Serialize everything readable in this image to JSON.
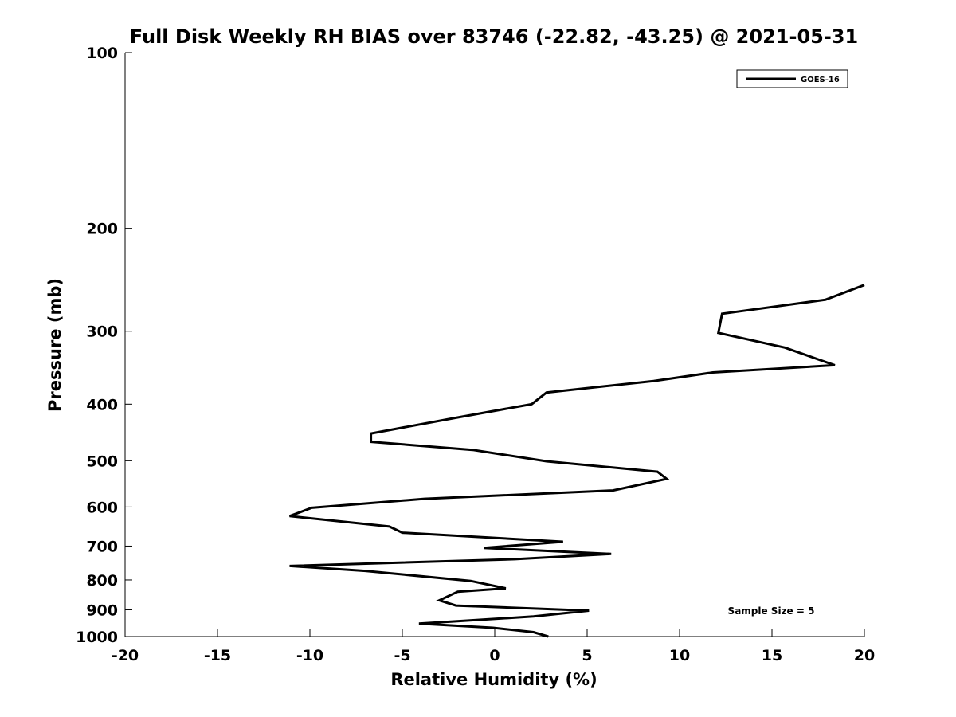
{
  "chart_data": {
    "type": "line",
    "title": "Full Disk Weekly RH BIAS over 83746 (-22.82, -43.25) @ 2021-05-31",
    "xlabel": "Relative Humidity (%)",
    "ylabel": "Pressure (mb)",
    "xlim": [
      -20,
      20
    ],
    "ylim": [
      100,
      1000
    ],
    "y_scale": "log",
    "y_reversed": true,
    "x_ticks": [
      -20,
      -15,
      -10,
      -5,
      0,
      5,
      10,
      15,
      20
    ],
    "x_tick_labels": [
      "-20",
      "-15",
      "-10",
      "-5",
      "0",
      "5",
      "10",
      "15",
      "20"
    ],
    "y_ticks": [
      100,
      200,
      300,
      400,
      500,
      600,
      700,
      800,
      900,
      1000
    ],
    "y_tick_labels": [
      "100",
      "200",
      "300",
      "400",
      "500",
      "600",
      "700",
      "800",
      "900",
      "1000"
    ],
    "grid": false,
    "legend_position": "top-right",
    "series": [
      {
        "name": "GOES-16",
        "color": "#000000",
        "points": [
          {
            "x": 20.0,
            "y": 250
          },
          {
            "x": 17.9,
            "y": 265
          },
          {
            "x": 12.3,
            "y": 280
          },
          {
            "x": 12.1,
            "y": 302
          },
          {
            "x": 15.7,
            "y": 320
          },
          {
            "x": 18.4,
            "y": 343
          },
          {
            "x": 11.8,
            "y": 353
          },
          {
            "x": 8.6,
            "y": 365
          },
          {
            "x": 2.8,
            "y": 382
          },
          {
            "x": 2.0,
            "y": 400
          },
          {
            "x": -2.1,
            "y": 422
          },
          {
            "x": -6.7,
            "y": 449
          },
          {
            "x": -6.7,
            "y": 464
          },
          {
            "x": -1.2,
            "y": 479
          },
          {
            "x": 2.8,
            "y": 501
          },
          {
            "x": 8.8,
            "y": 522
          },
          {
            "x": 9.3,
            "y": 537
          },
          {
            "x": 6.4,
            "y": 562
          },
          {
            "x": -3.8,
            "y": 581
          },
          {
            "x": -9.9,
            "y": 602
          },
          {
            "x": -11.1,
            "y": 622
          },
          {
            "x": -5.7,
            "y": 648
          },
          {
            "x": -5.0,
            "y": 664
          },
          {
            "x": 3.7,
            "y": 688
          },
          {
            "x": -0.6,
            "y": 705
          },
          {
            "x": 6.3,
            "y": 722
          },
          {
            "x": 1.1,
            "y": 737
          },
          {
            "x": -11.1,
            "y": 757
          },
          {
            "x": -7.0,
            "y": 772
          },
          {
            "x": -1.3,
            "y": 803
          },
          {
            "x": 0.6,
            "y": 827
          },
          {
            "x": -2.0,
            "y": 838
          },
          {
            "x": -3.0,
            "y": 867
          },
          {
            "x": -2.1,
            "y": 885
          },
          {
            "x": 5.1,
            "y": 903
          },
          {
            "x": 2.1,
            "y": 924
          },
          {
            "x": -4.1,
            "y": 950
          },
          {
            "x": -0.1,
            "y": 966
          },
          {
            "x": 2.1,
            "y": 983
          },
          {
            "x": 2.9,
            "y": 1000
          }
        ]
      }
    ],
    "annotations": [
      {
        "text": "Sample Size = 5"
      }
    ]
  }
}
